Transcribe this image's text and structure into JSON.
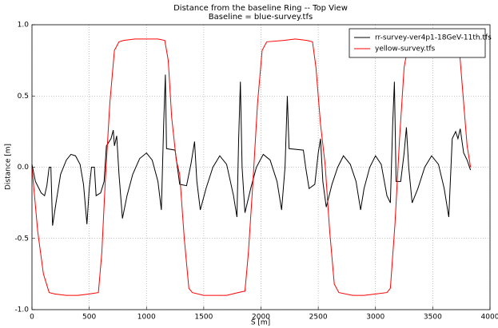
{
  "chart_data": {
    "type": "line",
    "title": "Distance from the baseline Ring -- Top View",
    "subtitle": "Baseline = blue-survey.tfs",
    "x_label": "S [m]",
    "y_label": "Distance [m]",
    "xlim": [
      0,
      4000
    ],
    "ylim": [
      -1,
      1
    ],
    "xticks": [
      0,
      500,
      1000,
      1500,
      2000,
      2500,
      3000,
      3500,
      4000
    ],
    "yticks": [
      {
        "value": -1,
        "label": "-1.0"
      },
      {
        "value": -0.5,
        "label": "-0.5"
      },
      {
        "value": 0,
        "label": "0.0"
      },
      {
        "value": 0.5,
        "label": "0.5"
      },
      {
        "value": 1,
        "label": "1.0"
      }
    ],
    "grid": true,
    "legend": "upper right",
    "series": [
      {
        "name": "rr-survey-ver4p1-18GeV-11th.tfs",
        "color": "#000000",
        "x": [
          0,
          30,
          80,
          110,
          130,
          150,
          165,
          180,
          210,
          250,
          300,
          340,
          380,
          420,
          450,
          480,
          500,
          520,
          545,
          560,
          600,
          630,
          650,
          690,
          710,
          720,
          740,
          760,
          790,
          830,
          880,
          940,
          1000,
          1050,
          1100,
          1130,
          1150,
          1165,
          1175,
          1250,
          1270,
          1290,
          1350,
          1390,
          1420,
          1440,
          1470,
          1520,
          1580,
          1640,
          1700,
          1760,
          1790,
          1805,
          1820,
          1835,
          1860,
          1910,
          1960,
          2020,
          2080,
          2140,
          2180,
          2210,
          2230,
          2245,
          2370,
          2390,
          2420,
          2470,
          2500,
          2520,
          2540,
          2570,
          2620,
          2670,
          2720,
          2780,
          2830,
          2870,
          2900,
          2950,
          3000,
          3050,
          3100,
          3130,
          3150,
          3165,
          3180,
          3220,
          3250,
          3270,
          3290,
          3320,
          3370,
          3430,
          3490,
          3550,
          3600,
          3640,
          3670,
          3700,
          3720,
          3740,
          3770,
          3800,
          3830
        ],
        "values": [
          0.02,
          -0.1,
          -0.18,
          -0.2,
          -0.13,
          0,
          0,
          -0.41,
          -0.25,
          -0.05,
          0.05,
          0.09,
          0.08,
          0.02,
          -0.12,
          -0.4,
          -0.15,
          0,
          0,
          -0.2,
          -0.18,
          -0.1,
          0.15,
          0.2,
          0.26,
          0.15,
          0.22,
          -0.05,
          -0.36,
          -0.2,
          -0.05,
          0.06,
          0.1,
          0.05,
          -0.1,
          -0.3,
          0.3,
          0.65,
          0.13,
          0.12,
          0,
          -0.12,
          -0.13,
          0.03,
          0.18,
          -0.1,
          -0.3,
          -0.15,
          0,
          0.08,
          0.02,
          -0.2,
          -0.35,
          0.2,
          0.6,
          0,
          -0.32,
          -0.15,
          0,
          0.09,
          0.05,
          -0.1,
          -0.3,
          0,
          0.5,
          0.13,
          0.12,
          0,
          -0.15,
          -0.12,
          0.1,
          0.2,
          -0.1,
          -0.28,
          -0.12,
          0,
          0.08,
          0.02,
          -0.1,
          -0.3,
          -0.15,
          0,
          0.08,
          0.02,
          -0.2,
          -0.25,
          0.3,
          0.6,
          -0.1,
          -0.1,
          0.1,
          0.28,
          0,
          -0.25,
          -0.15,
          0,
          0.08,
          0.02,
          -0.15,
          -0.35,
          0.2,
          0.25,
          0.2,
          0.27,
          0.1,
          0.05,
          -0.02
        ]
      },
      {
        "name": "yellow-survey.tfs",
        "color": "#ff0000",
        "x": [
          0,
          50,
          100,
          150,
          200,
          300,
          400,
          500,
          580,
          610,
          640,
          680,
          720,
          760,
          800,
          900,
          1000,
          1100,
          1160,
          1190,
          1220,
          1260,
          1290,
          1330,
          1370,
          1400,
          1500,
          1600,
          1700,
          1800,
          1860,
          1890,
          1930,
          1970,
          2010,
          2050,
          2200,
          2300,
          2400,
          2450,
          2480,
          2520,
          2560,
          2600,
          2640,
          2680,
          2800,
          2900,
          3000,
          3100,
          3130,
          3170,
          3210,
          3250,
          3290,
          3400,
          3500,
          3600,
          3700,
          3730,
          3760,
          3800,
          3830
        ],
        "values": [
          0,
          -0.45,
          -0.75,
          -0.88,
          -0.89,
          -0.9,
          -0.9,
          -0.89,
          -0.88,
          -0.6,
          -0.1,
          0.45,
          0.82,
          0.88,
          0.89,
          0.9,
          0.9,
          0.9,
          0.89,
          0.75,
          0.35,
          0.05,
          -0.05,
          -0.5,
          -0.85,
          -0.88,
          -0.9,
          -0.9,
          -0.9,
          -0.88,
          -0.87,
          -0.6,
          -0.1,
          0.45,
          0.82,
          0.88,
          0.89,
          0.9,
          0.89,
          0.88,
          0.7,
          0.3,
          0.02,
          -0.45,
          -0.82,
          -0.88,
          -0.9,
          -0.9,
          -0.89,
          -0.88,
          -0.85,
          -0.4,
          0.2,
          0.7,
          0.88,
          0.89,
          0.9,
          0.9,
          0.88,
          0.85,
          0.55,
          0.15,
          0
        ]
      }
    ]
  }
}
